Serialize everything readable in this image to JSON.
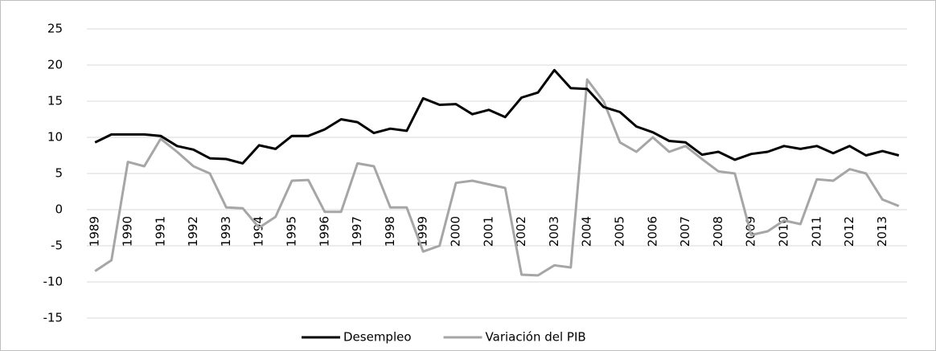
{
  "chart_data": {
    "type": "line",
    "categories": [
      "1989",
      null,
      "1990",
      null,
      "1991",
      null,
      "1992",
      null,
      "1993",
      null,
      "1994",
      null,
      "1995",
      null,
      "1996",
      null,
      "1997",
      null,
      "1998",
      null,
      "1999",
      null,
      "2000",
      null,
      "2001",
      null,
      "2002",
      null,
      "2003",
      null,
      "2004",
      null,
      "2005",
      null,
      "2006",
      null,
      "2007",
      null,
      "2008",
      null,
      "2009",
      null,
      "2010",
      null,
      "2011",
      null,
      "2012",
      null,
      "2013",
      null
    ],
    "series": [
      {
        "name": "Desempleo",
        "color": "#000000",
        "values": [
          9.3,
          10.4,
          10.4,
          10.4,
          10.2,
          8.8,
          8.3,
          7.1,
          7.0,
          6.4,
          8.9,
          8.4,
          10.2,
          10.2,
          11.1,
          12.5,
          12.1,
          10.6,
          11.2,
          10.9,
          15.4,
          14.5,
          14.6,
          13.2,
          13.8,
          12.8,
          15.5,
          16.2,
          19.3,
          16.8,
          16.7,
          14.2,
          13.5,
          11.5,
          10.7,
          9.5,
          9.3,
          7.6,
          8.0,
          6.9,
          7.7,
          8.0,
          8.8,
          8.4,
          8.8,
          7.8,
          8.8,
          7.5,
          8.1,
          7.5
        ]
      },
      {
        "name": "Variación del PIB",
        "color": "#a6a6a6",
        "values": [
          -8.5,
          -7.0,
          6.6,
          6.0,
          9.8,
          8.0,
          6.0,
          5.0,
          0.3,
          0.2,
          -2.5,
          -1.0,
          4.0,
          4.1,
          -0.3,
          -0.3,
          6.4,
          6.0,
          0.3,
          0.3,
          -5.8,
          -5.0,
          3.7,
          4.0,
          3.5,
          3.0,
          -9.0,
          -9.1,
          -7.7,
          -8.0,
          18.0,
          15.0,
          9.3,
          8.0,
          10.0,
          8.0,
          8.8,
          7.0,
          5.3,
          5.0,
          -3.5,
          -3.0,
          -1.5,
          -2.0,
          4.2,
          4.0,
          5.6,
          5.0,
          1.4,
          0.5
        ]
      }
    ],
    "ylim": [
      -15,
      25
    ],
    "yticks": [
      -15,
      -10,
      -5,
      0,
      5,
      10,
      15,
      20,
      25
    ],
    "grid": true,
    "legend": "bottom"
  }
}
